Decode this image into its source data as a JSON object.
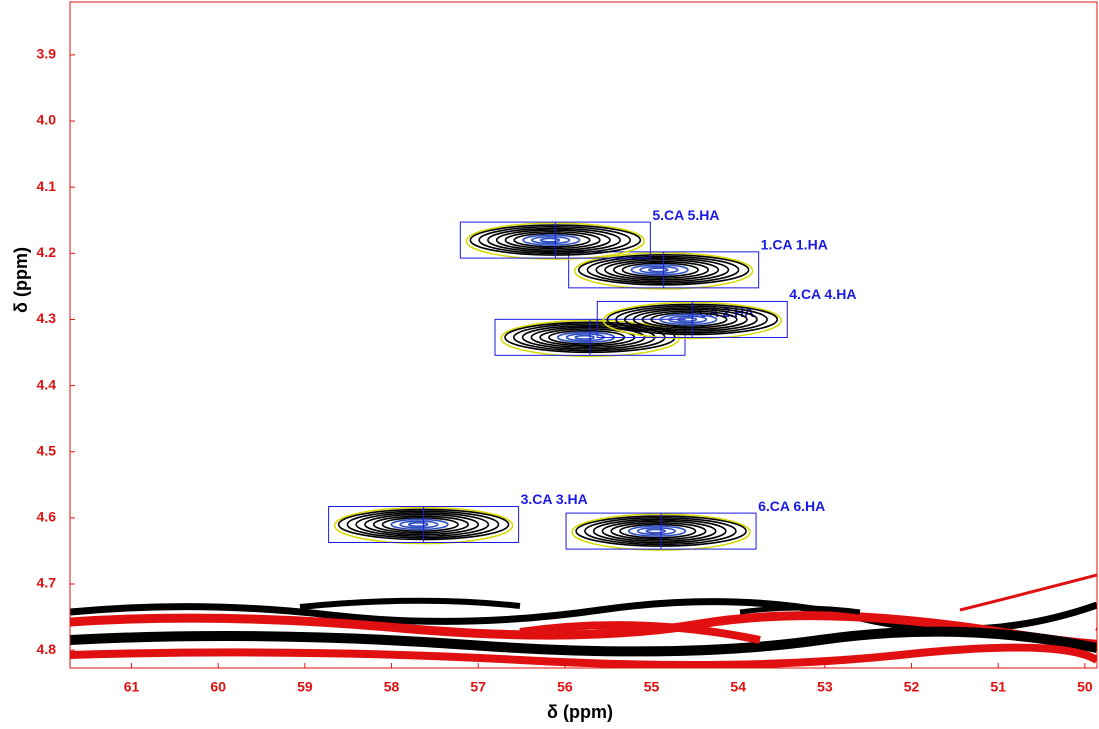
{
  "chart_data": {
    "type": "contour",
    "x_label": "δ (ppm)",
    "y_label": "δ (ppm)",
    "xlim": [
      61.71,
      49.86
    ],
    "ylim": [
      3.82,
      4.827
    ],
    "xticks": [
      61,
      60,
      59,
      58,
      57,
      56,
      55,
      54,
      53,
      52,
      51,
      50
    ],
    "yticks": [
      3.9,
      {
        "value": 4,
        "label": "4.0"
      },
      4.1,
      4.2,
      4.3,
      4.4,
      4.5,
      4.6,
      4.7,
      4.8
    ],
    "labels": [
      "1.CA 1.HA",
      "2.CA 2.HA",
      "3.CA 3.HA",
      "4.CA 4.HA",
      "5.CA 5.HA",
      "6.CA 6.HA"
    ],
    "x": [
      54.86,
      55.71,
      57.63,
      54.53,
      56.11,
      54.89
    ],
    "values": [
      4.225,
      4.327,
      4.61,
      4.3,
      4.18,
      4.62
    ],
    "color": "#000000",
    "label_color": "#1a1ae6",
    "axis_color": "#e01010"
  }
}
